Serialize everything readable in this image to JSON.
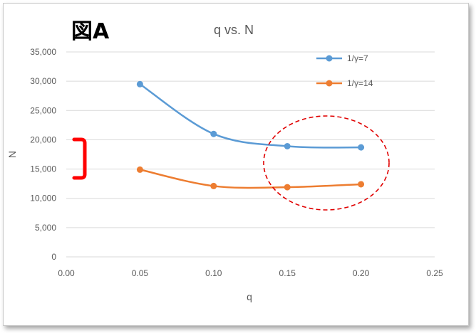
{
  "figure_label": "図A",
  "colors": {
    "series_1": "#5b9bd5",
    "series_2": "#ed7d31",
    "gridline": "#d9d9d9",
    "annotation": "#ff0000"
  },
  "annotations": [
    {
      "type": "bracket",
      "color": "#ff0000",
      "meaning": "gap between series"
    },
    {
      "type": "dashed-ellipse",
      "color": "#ff0000",
      "meaning": "highlight q 0.15–0.20"
    }
  ],
  "chart_data": {
    "type": "line",
    "title": "q vs. N",
    "xlabel": "q",
    "ylabel": "N",
    "xlim": [
      0,
      0.25
    ],
    "ylim": [
      0,
      35000
    ],
    "x_ticks": [
      "0.00",
      "0.05",
      "0.10",
      "0.15",
      "0.20",
      "0.25"
    ],
    "y_ticks": [
      "0",
      "5,000",
      "10,000",
      "15,000",
      "20,000",
      "25,000",
      "30,000",
      "35,000"
    ],
    "grid": "horizontal",
    "legend_position": "top-right",
    "smoothed": true,
    "series": [
      {
        "name": "1/γ=7",
        "color": "#5b9bd5",
        "x": [
          0.05,
          0.1,
          0.15,
          0.2
        ],
        "values": [
          29500,
          21000,
          18900,
          18700
        ]
      },
      {
        "name": "1/γ=14",
        "color": "#ed7d31",
        "x": [
          0.05,
          0.1,
          0.15,
          0.2
        ],
        "values": [
          14900,
          12100,
          11900,
          12400
        ]
      }
    ]
  }
}
